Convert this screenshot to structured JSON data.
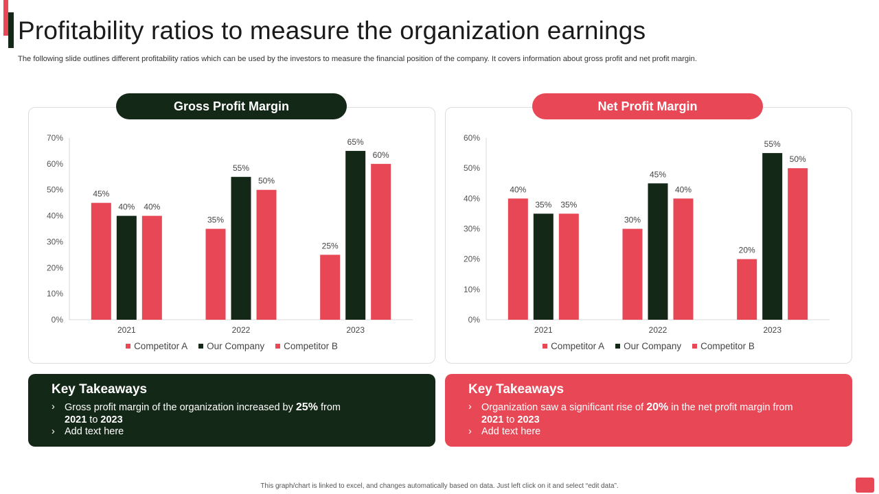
{
  "title": "Profitability ratios to measure the organization earnings",
  "subtitle": "The following slide outlines different profitability ratios which can be used by the investors to measure the financial position of the company. It covers information about gross profit and net profit margin.",
  "colors": {
    "red": "#e84756",
    "dark": "#142817"
  },
  "chart_data": [
    {
      "type": "bar",
      "title": "Gross Profit Margin",
      "categories": [
        "2021",
        "2022",
        "2023"
      ],
      "series": [
        {
          "name": "Competitor A",
          "color": "#e84756",
          "values": [
            45,
            35,
            25
          ]
        },
        {
          "name": "Our Company",
          "color": "#142817",
          "values": [
            40,
            55,
            65
          ]
        },
        {
          "name": "Competitor B",
          "color": "#e84756",
          "values": [
            40,
            50,
            60
          ]
        }
      ],
      "yticks": [
        "0%",
        "10%",
        "20%",
        "30%",
        "40%",
        "50%",
        "60%",
        "70%"
      ],
      "ylim": [
        0,
        70
      ],
      "grid": false,
      "legend": "bottom"
    },
    {
      "type": "bar",
      "title": "Net Profit Margin",
      "categories": [
        "2021",
        "2022",
        "2023"
      ],
      "series": [
        {
          "name": "Competitor A",
          "color": "#e84756",
          "values": [
            40,
            30,
            20
          ]
        },
        {
          "name": "Our Company",
          "color": "#142817",
          "values": [
            35,
            45,
            55
          ]
        },
        {
          "name": "Competitor B",
          "color": "#e84756",
          "values": [
            35,
            40,
            50
          ]
        }
      ],
      "yticks": [
        "0%",
        "10%",
        "20%",
        "30%",
        "40%",
        "50%",
        "60%"
      ],
      "ylim": [
        0,
        60
      ],
      "grid": false,
      "legend": "bottom"
    }
  ],
  "takeaways": [
    {
      "title": "Key Takeaways",
      "line1_pre": "Gross profit margin of the organization increased by",
      "line1_value": "25%",
      "line1_post": "from",
      "line2_from": "2021",
      "line2_to_word": "to",
      "line2_to": "2023",
      "line3": "Add text here"
    },
    {
      "title": "Key Takeaways",
      "line1_pre": "Organization saw a significant rise of",
      "line1_value": "20%",
      "line1_post": "in the net profit margin from",
      "line2_from": "2021",
      "line2_to_word": "to",
      "line2_to": "2023",
      "line3": "Add text here"
    }
  ],
  "footer": "This graph/chart is linked to excel, and changes automatically based on data. Just left click on it and select “edit data”."
}
